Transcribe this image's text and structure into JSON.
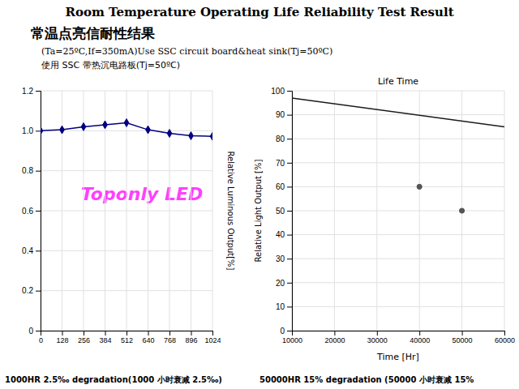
{
  "title": "Room Temperature Operating Life Reliability Test Result",
  "subtitle": "常温点亮信耐性结果",
  "annotations": [
    "(Ta=25ºC,If=350mA)Use SSC circuit board&heat sink(Tj=50ºC)",
    "使用 SSC 带热沉电路板(Tj=50ºC)",
    "Toponly LED",
    "1000HR 2.5‰ degradation(1000 小时衰减 2.5‰)",
    "50000HR 15%  degradation (50000 小时衰减 15%"
  ],
  "chart_data": [
    {
      "type": "line",
      "ylabel": "Relative Luminous Output[%]",
      "x": [
        0,
        128,
        256,
        384,
        512,
        640,
        768,
        896,
        1024
      ],
      "values": [
        1.0,
        1.005,
        1.02,
        1.03,
        1.04,
        1.005,
        0.987,
        0.975,
        0.972
      ],
      "color": "#000080",
      "marker": "diamond",
      "xlim": [
        0,
        1024
      ],
      "ylim": [
        0,
        1.2
      ],
      "xticks": [
        0,
        128,
        256,
        384,
        512,
        640,
        768,
        896,
        1024
      ],
      "yticks": [
        0,
        0.2,
        0.4,
        0.6,
        0.8,
        {
          "value": 1.0,
          "label": "1.0"
        },
        1.2
      ],
      "grid": true
    },
    {
      "type": "line",
      "title": "Life Time",
      "xlabel": "Time [Hr]",
      "ylabel": "Relative Light Output [%]",
      "series": [
        {
          "type": "line",
          "color": "#1a1a1a",
          "x": [
            10000,
            60000
          ],
          "values": [
            97,
            85
          ]
        },
        {
          "type": "scatter",
          "color": "#555555",
          "marker": "circle",
          "x": [
            40000,
            50000
          ],
          "values": [
            60,
            50
          ]
        }
      ],
      "xlim": [
        10000,
        60000
      ],
      "ylim": [
        0,
        100
      ],
      "xticks": [
        10000,
        20000,
        30000,
        40000,
        50000,
        60000
      ],
      "yticks": [
        0,
        10,
        20,
        30,
        40,
        50,
        60,
        70,
        80,
        90,
        100
      ],
      "grid": true
    }
  ]
}
